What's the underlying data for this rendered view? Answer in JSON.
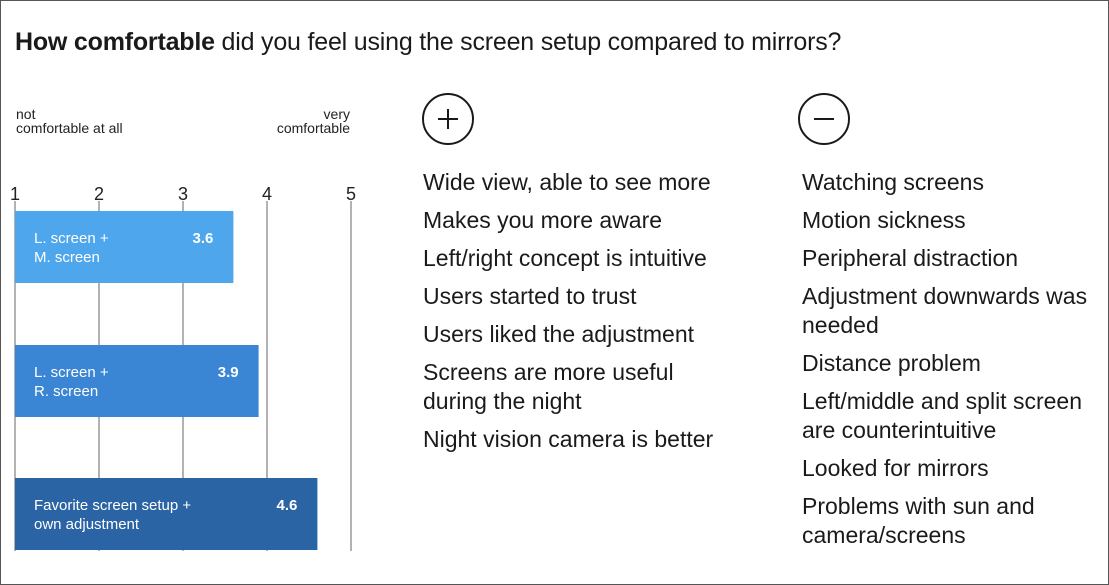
{
  "title": {
    "bold": "How comfortable",
    "rest": "did you feel using the screen setup compared to mirrors?"
  },
  "scale": {
    "low_label": [
      "not",
      "comfortable at all"
    ],
    "high_label": [
      "very",
      "comfortable"
    ]
  },
  "chart_data": {
    "type": "bar",
    "orientation": "horizontal",
    "categories": [
      [
        "L. screen +",
        "M. screen"
      ],
      [
        "L. screen +",
        "R. screen"
      ],
      [
        "Favorite screen setup +",
        "own adjustment"
      ]
    ],
    "values": [
      3.6,
      3.9,
      4.6
    ],
    "value_labels": [
      "3.6",
      "3.9",
      "4.6"
    ],
    "xlim": [
      1,
      5
    ],
    "ticks": [
      "1",
      "2",
      "3",
      "4",
      "5"
    ],
    "grid": true,
    "colors": [
      "#4ea6ec",
      "#3a86d4",
      "#2a64a4"
    ]
  },
  "pros": {
    "icon": "plus-icon",
    "items": [
      "Wide view, able to see more",
      "Makes you more aware",
      "Left/right concept is intuitive",
      "Users started to trust",
      "Users liked the adjustment",
      "Screens are more useful during the night",
      "Night vision camera is better"
    ]
  },
  "cons": {
    "icon": "minus-icon",
    "items": [
      "Watching screens",
      "Motion sickness",
      "Peripheral distraction",
      "Adjustment downwards was needed",
      "Distance problem",
      "Left/middle and split screen are counterintuitive",
      "Looked for mirrors",
      "Problems with sun and camera/screens"
    ]
  }
}
